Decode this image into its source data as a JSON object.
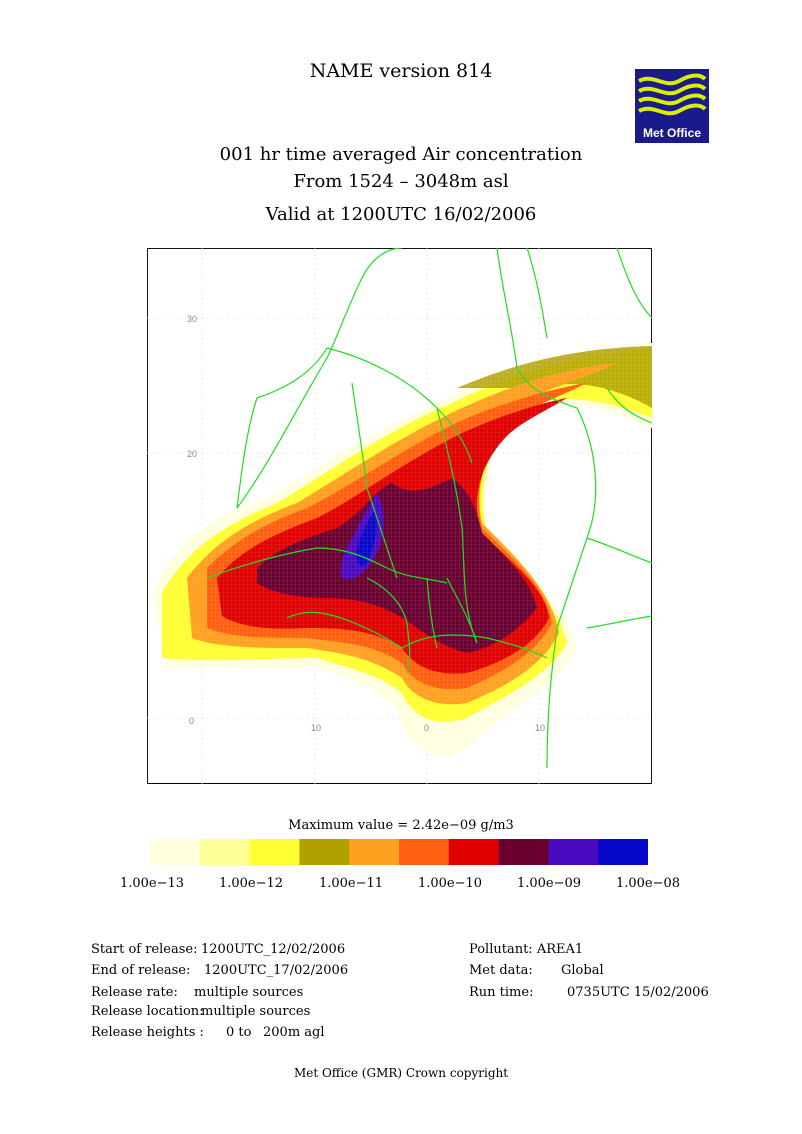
{
  "header": {
    "title": "NAME version 814",
    "line1": "001 hr time averaged   Air concentration",
    "line2": "From  1524 –  3048m asl",
    "line3": "Valid at 1200UTC 16/02/2006"
  },
  "logo": {
    "text": "Met Office",
    "bg": "#1a1a8c",
    "wave": "#d8f000"
  },
  "map": {
    "lat_labels": [
      "30",
      "20",
      "0"
    ],
    "lon_labels": [
      "10",
      "0",
      "10"
    ]
  },
  "legend": {
    "max_value": "Maximum value = 2.42e−09 g/m3",
    "colors": [
      "#ffffe0",
      "#ffff99",
      "#ffff33",
      "#b0a000",
      "#ffa020",
      "#ff6010",
      "#e00000",
      "#6a0030",
      "#4a0abf",
      "#0808cc"
    ],
    "ticks": [
      "1.00e−13",
      "1.00e−12",
      "1.00e−11",
      "1.00e−10",
      "1.00e−09",
      "1.00e−08"
    ]
  },
  "info": {
    "start_label": "Start of release:",
    "start_value": "1200UTC_12/02/2006",
    "end_label": "End of release:",
    "end_value": "1200UTC_17/02/2006",
    "rate_label": "Release rate:",
    "rate_value": "multiple sources",
    "location_label": "Release location:",
    "location_value": "multiple sources",
    "heights_label": "Release heights :",
    "heights_from": "0 to",
    "heights_to": "200m agl",
    "pollutant": "Pollutant: AREA1",
    "metdata_label": "Met data:",
    "metdata_value": "Global",
    "runtime_label": "Run time:",
    "runtime_value": "0735UTC 15/02/2006"
  },
  "footer": "Met Office (GMR)  Crown copyright"
}
